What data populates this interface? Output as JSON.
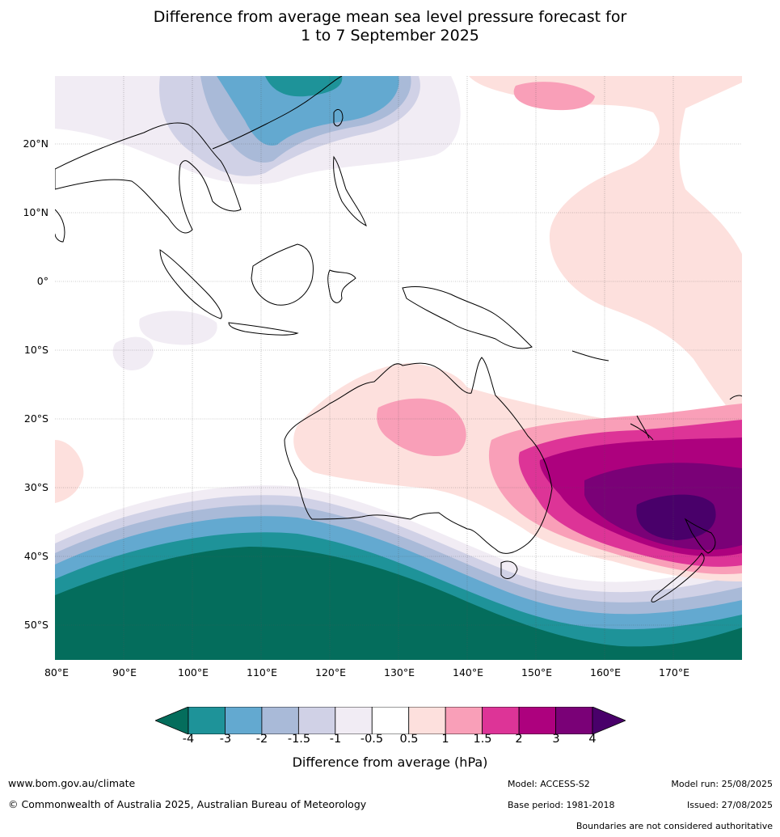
{
  "title": {
    "line1": "Difference from average mean sea level pressure forecast for",
    "line2": "1 to 7 September 2025"
  },
  "axes": {
    "latitude_labels": [
      "20°N",
      "10°N",
      "0°",
      "10°S",
      "20°S",
      "30°S",
      "40°S",
      "50°S"
    ],
    "longitude_labels": [
      "80°E",
      "90°E",
      "100°E",
      "110°E",
      "120°E",
      "130°E",
      "140°E",
      "150°E",
      "160°E",
      "170°E"
    ]
  },
  "colorbar": {
    "ticks": [
      "-4",
      "-3",
      "-2",
      "-1.5",
      "-1",
      "-0.5",
      "0.5",
      "1",
      "1.5",
      "2",
      "3",
      "4"
    ],
    "label": "Difference from average (hPa)",
    "colors": [
      "#046d5c",
      "#1e9399",
      "#63a9d0",
      "#a9bad8",
      "#d0d1e6",
      "#f1ecf4",
      "#ffffff",
      "#fde0dd",
      "#f99fb8",
      "#dd3497",
      "#ad017e",
      "#7a0177",
      "#49006a"
    ]
  },
  "footer": {
    "website": "www.bom.gov.au/climate",
    "copyright": "© Commonwealth of Australia 2025, Australian Bureau of Meteorology",
    "model": "Model: ACCESS-S2",
    "base_period": "Base period: 1981-2018",
    "model_run": "Model run: 25/08/2025",
    "issued": "Issued: 27/08/2025",
    "disclaimer": "Boundaries are not considered authoritative"
  }
}
